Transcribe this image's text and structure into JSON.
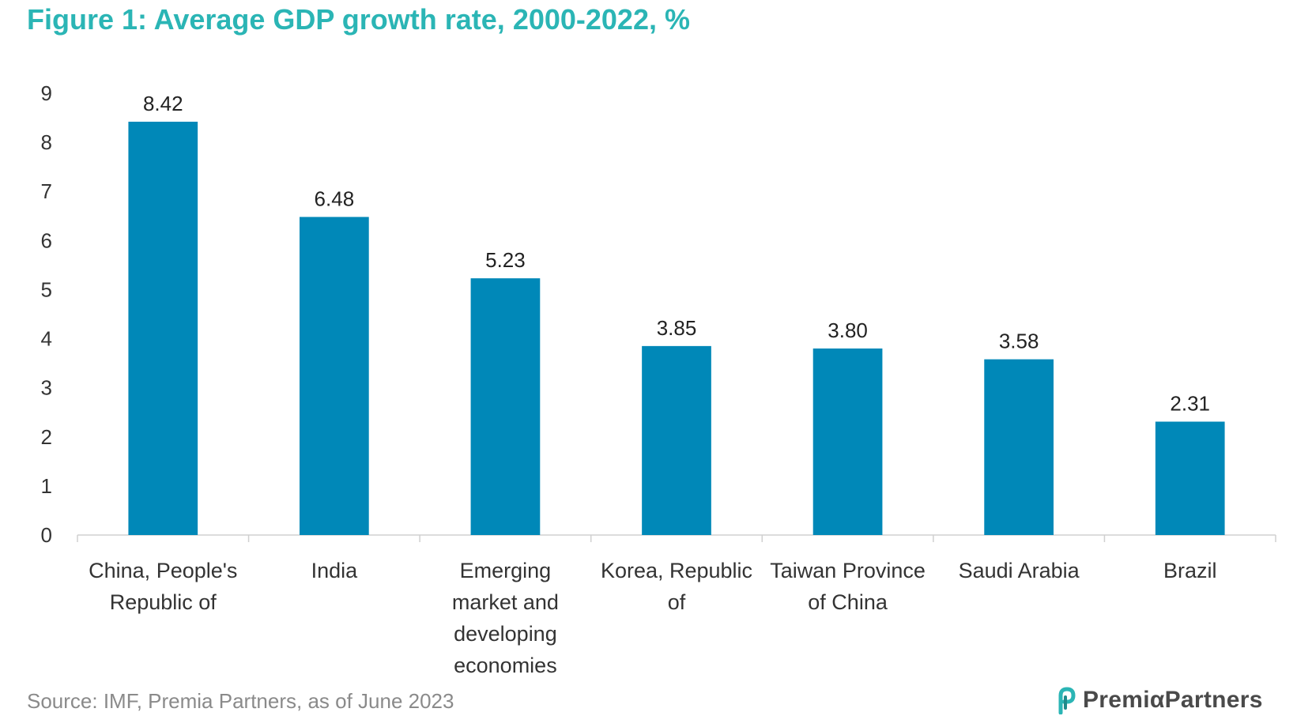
{
  "title": "Figure 1: Average GDP growth rate, 2000-2022, %",
  "source": "Source: IMF, Premia Partners, as of June 2023",
  "logo": {
    "text": "PremiαPartners",
    "icon": "premia-logo-icon"
  },
  "colors": {
    "bar": "#0088b8",
    "title": "#2bb5b5",
    "axis": "#d0d0d0"
  },
  "chart_data": {
    "type": "bar",
    "title": "Figure 1: Average GDP growth rate, 2000-2022, %",
    "categories": [
      [
        "China, People's",
        "Republic of"
      ],
      [
        "India"
      ],
      [
        "Emerging",
        "market and",
        "developing",
        "economies"
      ],
      [
        "Korea, Republic",
        "of"
      ],
      [
        "Taiwan Province",
        "of China"
      ],
      [
        "Saudi Arabia"
      ],
      [
        "Brazil"
      ]
    ],
    "values": [
      8.42,
      6.48,
      5.23,
      3.85,
      3.8,
      3.58,
      2.31
    ],
    "value_labels": [
      "8.42",
      "6.48",
      "5.23",
      "3.85",
      "3.80",
      "3.58",
      "2.31"
    ],
    "yticks": [
      "0",
      "1",
      "2",
      "3",
      "4",
      "5",
      "6",
      "7",
      "8",
      "9"
    ],
    "ylim": [
      0,
      9
    ],
    "grid": false,
    "legend": "none"
  }
}
